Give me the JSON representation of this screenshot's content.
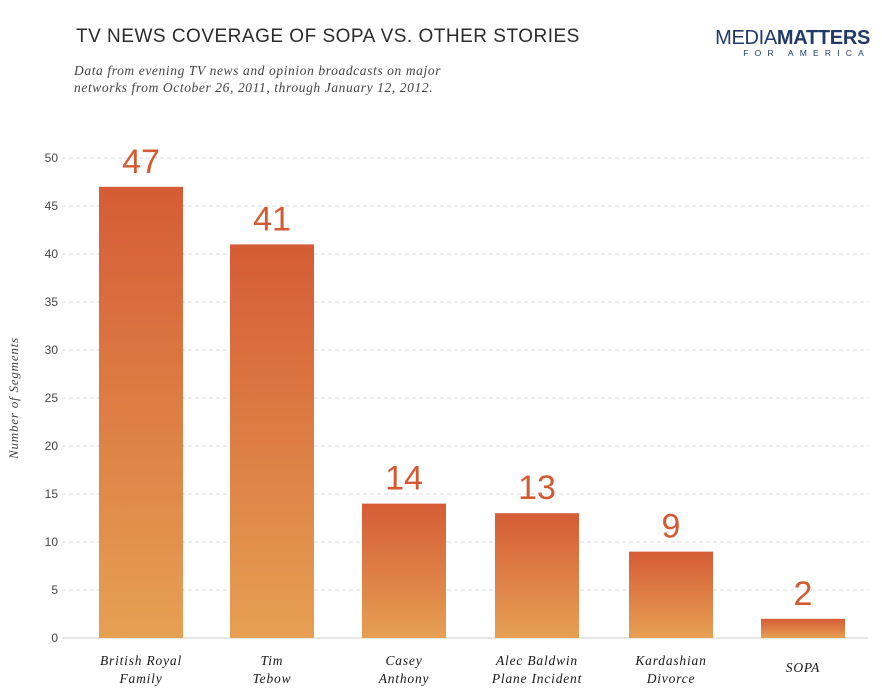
{
  "chart_data": {
    "type": "bar",
    "title": "TV NEWS COVERAGE OF SOPA VS. OTHER STORIES",
    "subtitle_lines": [
      "Data from evening TV news and opinion broadcasts on major",
      "networks from October 26, 2011, through January 12, 2012."
    ],
    "xlabel": "",
    "ylabel": "Number of Segments",
    "ylim": [
      0,
      50
    ],
    "yticks": [
      0,
      5,
      10,
      15,
      20,
      25,
      30,
      35,
      40,
      45,
      50
    ],
    "grid": true,
    "categories": [
      [
        "British Royal",
        "Family"
      ],
      [
        "Tim",
        "Tebow"
      ],
      [
        "Casey",
        "Anthony"
      ],
      [
        "Alec Baldwin",
        "Plane Incident"
      ],
      [
        "Kardashian",
        "Divorce"
      ],
      [
        "SOPA"
      ]
    ],
    "values": [
      47,
      41,
      14,
      13,
      9,
      2
    ],
    "data_labels": [
      "47",
      "41",
      "14",
      "13",
      "9",
      "2"
    ]
  },
  "logo": {
    "main_light": "MEDIA",
    "main_bold": "MATTERS",
    "sub": "FOR AMERICA"
  },
  "colors": {
    "bar_top": "#d55c36",
    "bar_bottom": "#e6a053",
    "value_label": "#d45a33",
    "grid": "#d9d9d9",
    "logo": "#1f3a6b"
  }
}
